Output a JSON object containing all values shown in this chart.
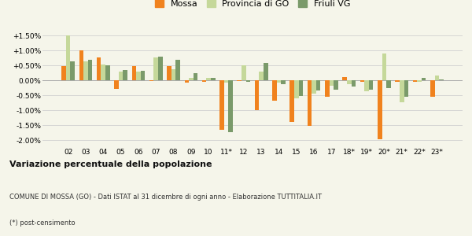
{
  "categories": [
    "02",
    "03",
    "04",
    "05",
    "06",
    "07",
    "08",
    "09",
    "10",
    "11*",
    "12",
    "13",
    "14",
    "15",
    "16",
    "17",
    "18*",
    "19*",
    "20*",
    "21*",
    "22*",
    "23*"
  ],
  "mossa": [
    0.48,
    1.02,
    0.78,
    -0.28,
    0.48,
    -0.02,
    0.48,
    -0.07,
    -0.05,
    -1.65,
    -0.02,
    -1.0,
    -0.68,
    -1.38,
    -1.52,
    -0.55,
    0.12,
    -0.03,
    -1.95,
    -0.03,
    -0.05,
    -0.55
  ],
  "provincia_go": [
    1.5,
    0.65,
    0.55,
    0.3,
    0.3,
    0.78,
    0.38,
    0.1,
    0.1,
    -0.08,
    0.5,
    0.3,
    -0.07,
    -0.6,
    -0.43,
    -0.18,
    -0.12,
    -0.35,
    0.9,
    -0.72,
    -0.05,
    0.18
  ],
  "friuli_vg": [
    0.65,
    0.7,
    0.52,
    0.35,
    0.32,
    0.8,
    0.7,
    0.25,
    0.1,
    -1.72,
    -0.05,
    0.6,
    -0.13,
    -0.52,
    -0.32,
    -0.3,
    -0.2,
    -0.3,
    -0.25,
    -0.55,
    0.08,
    0.05
  ],
  "color_mossa": "#f0821e",
  "color_provincia": "#c5d89a",
  "color_friuli": "#7a9a6a",
  "title": "Variazione percentuale della popolazione",
  "subtitle": "COMUNE DI MOSSA (GO) - Dati ISTAT al 31 dicembre di ogni anno - Elaborazione TUTTITALIA.IT",
  "footnote": "(*) post-censimento",
  "legend_labels": [
    "Mossa",
    "Provincia di GO",
    "Friuli VG"
  ],
  "ylim": [
    -2.2,
    1.75
  ],
  "yticks": [
    -2.0,
    -1.5,
    -1.0,
    -0.5,
    0.0,
    0.5,
    1.0,
    1.5
  ],
  "background_color": "#f5f5ea"
}
